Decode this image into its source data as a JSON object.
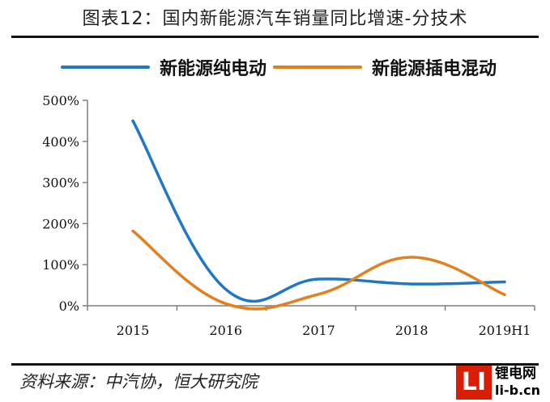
{
  "header": {
    "title": "图表12：国内新能源汽车销量同比增速-分技术"
  },
  "footer": {
    "source": "资料来源：中汽协，恒大研究院"
  },
  "logo": {
    "mark": "LI",
    "name": "锂电网",
    "site": "li-b.cn"
  },
  "colors": {
    "bev": "#1f78c1",
    "phev": "#e0801e",
    "axis": "#7f7f7f"
  },
  "chart_data": {
    "type": "line",
    "title": "国内新能源汽车销量同比增速-分技术",
    "categories": [
      "2015",
      "2016",
      "2017",
      "2018",
      "2019H1"
    ],
    "series": [
      {
        "name": "新能源纯电动",
        "values": [
          450,
          40,
          65,
          53,
          58
        ]
      },
      {
        "name": "新能源插电混动",
        "values": [
          182,
          5,
          28,
          118,
          27
        ]
      }
    ],
    "yticks": [
      "0%",
      "100%",
      "200%",
      "300%",
      "400%",
      "500%"
    ],
    "ylim": [
      0,
      500
    ],
    "unit": "%",
    "grid": false,
    "legend": "top",
    "smooth": true
  }
}
